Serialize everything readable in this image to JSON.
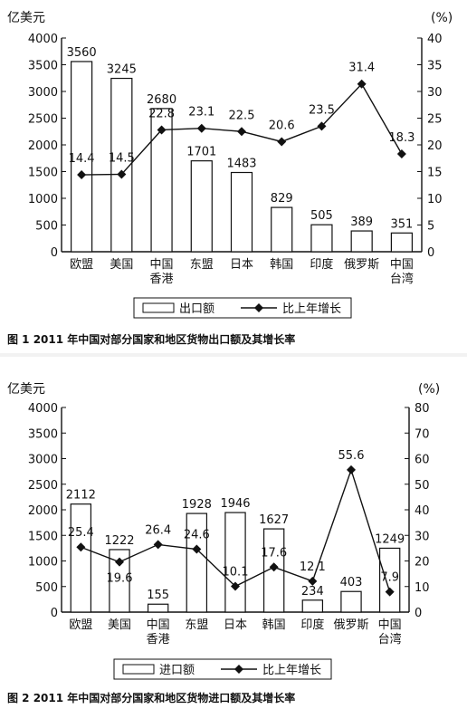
{
  "chart_data": [
    {
      "type": "bar",
      "categories": [
        "欧盟",
        "美国",
        "中国\n香港",
        "东盟",
        "日本",
        "韩国",
        "印度",
        "俄罗斯",
        "中国\n台湾"
      ],
      "series": [
        {
          "name": "出口额",
          "type": "bar",
          "axis": "left",
          "values": [
            3560,
            3245,
            2680,
            1701,
            1483,
            829,
            505,
            389,
            351
          ]
        },
        {
          "name": "比上年增长",
          "type": "line",
          "axis": "right",
          "values": [
            14.4,
            14.5,
            22.8,
            23.1,
            22.5,
            20.6,
            23.5,
            31.4,
            18.3
          ]
        }
      ],
      "ylabel_left": "亿美元",
      "ylabel_right": "(%)",
      "ylim_left": [
        0,
        4000
      ],
      "ylim_right": [
        0,
        40
      ],
      "yticks_left": [
        0,
        500,
        1000,
        1500,
        2000,
        2500,
        3000,
        3500,
        4000
      ],
      "yticks_right": [
        0,
        5,
        10,
        15,
        20,
        25,
        30,
        35,
        40
      ],
      "title": "图 1  2011 年中国对部分国家和地区货物出口额及其增长率",
      "legend_position": "bottom"
    },
    {
      "type": "bar",
      "categories": [
        "欧盟",
        "美国",
        "中国\n香港",
        "东盟",
        "日本",
        "韩国",
        "印度",
        "俄罗斯",
        "中国\n台湾"
      ],
      "series": [
        {
          "name": "进口额",
          "type": "bar",
          "axis": "left",
          "values": [
            2112,
            1222,
            155,
            1928,
            1946,
            1627,
            234,
            403,
            1249
          ]
        },
        {
          "name": "比上年增长",
          "type": "line",
          "axis": "right",
          "values": [
            25.4,
            19.6,
            26.4,
            24.6,
            10.1,
            17.6,
            12.1,
            55.6,
            7.9
          ]
        }
      ],
      "ylabel_left": "亿美元",
      "ylabel_right": "(%)",
      "ylim_left": [
        0,
        4000
      ],
      "ylim_right": [
        0,
        80
      ],
      "yticks_left": [
        0,
        500,
        1000,
        1500,
        2000,
        2500,
        3000,
        3500,
        4000
      ],
      "yticks_right": [
        0,
        10,
        20,
        30,
        40,
        50,
        60,
        70,
        80
      ],
      "title": "图 2  2011 年中国对部分国家和地区货物进口额及其增长率",
      "legend_position": "bottom"
    }
  ]
}
